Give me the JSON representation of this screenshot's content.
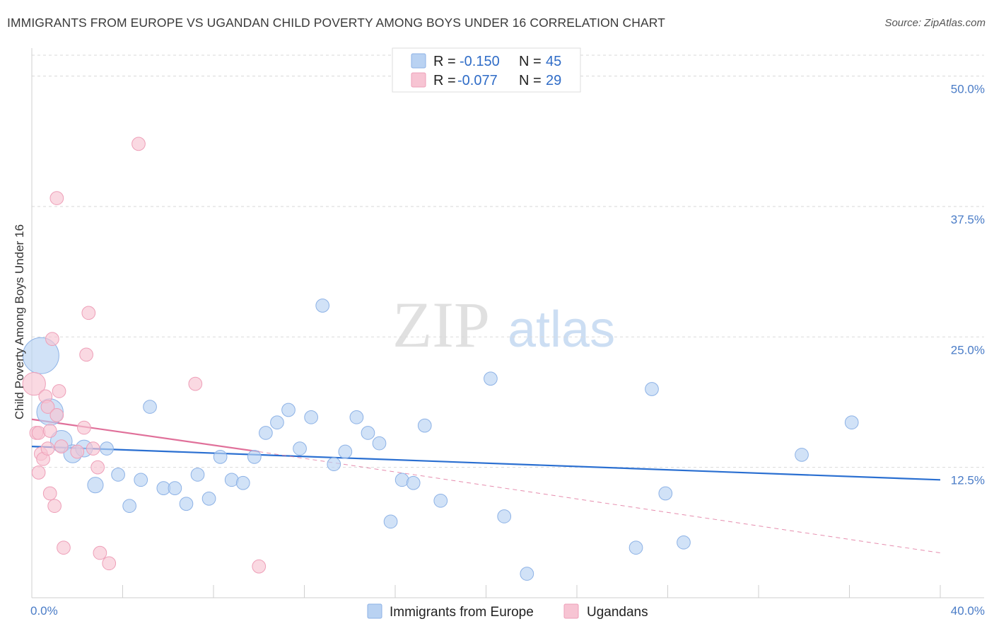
{
  "title": "IMMIGRANTS FROM EUROPE VS UGANDAN CHILD POVERTY AMONG BOYS UNDER 16 CORRELATION CHART",
  "source": "Source: ZipAtlas.com",
  "watermark": {
    "zip": "ZIP",
    "atlas": "atlas"
  },
  "colors": {
    "blue_fill": "#b9d2f2",
    "blue_stroke": "#8db2e6",
    "blue_line": "#2a6fd1",
    "pink_fill": "#f7c4d3",
    "pink_stroke": "#ee9fb8",
    "pink_line": "#e0709a",
    "axis_text": "#4a7cc7",
    "grid": "#d9d9d9"
  },
  "stats_legend": [
    {
      "r_label": "R =",
      "r_value": "-0.150",
      "n_label": "N =",
      "n_value": "45",
      "color": "blue"
    },
    {
      "r_label": "R =",
      "r_value": "-0.077",
      "n_label": "N =",
      "n_value": "29",
      "color": "pink"
    }
  ],
  "chart_data": {
    "type": "scatter",
    "title": "IMMIGRANTS FROM EUROPE VS UGANDAN CHILD POVERTY AMONG BOYS UNDER 16 CORRELATION CHART",
    "xlabel": "",
    "ylabel": "Child Poverty Among Boys Under 16",
    "xlim": [
      0,
      40
    ],
    "ylim": [
      0,
      52
    ],
    "x_tick_labels": [
      {
        "value": 0,
        "label": "0.0%"
      },
      {
        "value": 40,
        "label": "40.0%"
      }
    ],
    "y_ticks": [
      {
        "value": 12.5,
        "label": "12.5%"
      },
      {
        "value": 25.0,
        "label": "25.0%"
      },
      {
        "value": 37.5,
        "label": "37.5%"
      },
      {
        "value": 50.0,
        "label": "50.0%"
      }
    ],
    "series": [
      {
        "name": "Immigrants from Europe",
        "color": "blue",
        "trend": {
          "x0": 0,
          "y0": 14.5,
          "x1": 40,
          "y1": 11.3,
          "dashed_to": null
        },
        "points": [
          {
            "x": 0.4,
            "y": 23.2,
            "s": 3
          },
          {
            "x": 0.8,
            "y": 17.8,
            "s": 2.2
          },
          {
            "x": 1.3,
            "y": 15.0,
            "s": 1.8
          },
          {
            "x": 1.8,
            "y": 13.8,
            "s": 1.5
          },
          {
            "x": 2.3,
            "y": 14.3,
            "s": 1.4
          },
          {
            "x": 2.8,
            "y": 10.8,
            "s": 1.3
          },
          {
            "x": 3.3,
            "y": 14.3,
            "s": 1.1
          },
          {
            "x": 3.8,
            "y": 11.8,
            "s": 1.1
          },
          {
            "x": 4.3,
            "y": 8.8,
            "s": 1.1
          },
          {
            "x": 4.8,
            "y": 11.3,
            "s": 1.1
          },
          {
            "x": 5.2,
            "y": 18.3,
            "s": 1.1
          },
          {
            "x": 5.8,
            "y": 10.5,
            "s": 1.1
          },
          {
            "x": 6.3,
            "y": 10.5,
            "s": 1.1
          },
          {
            "x": 6.8,
            "y": 9.0,
            "s": 1.1
          },
          {
            "x": 7.3,
            "y": 11.8,
            "s": 1.1
          },
          {
            "x": 7.8,
            "y": 9.5,
            "s": 1.1
          },
          {
            "x": 8.3,
            "y": 13.5,
            "s": 1.1
          },
          {
            "x": 8.8,
            "y": 11.3,
            "s": 1.1
          },
          {
            "x": 9.3,
            "y": 11.0,
            "s": 1.1
          },
          {
            "x": 9.8,
            "y": 13.5,
            "s": 1.1
          },
          {
            "x": 10.3,
            "y": 15.8,
            "s": 1.1
          },
          {
            "x": 10.8,
            "y": 16.8,
            "s": 1.1
          },
          {
            "x": 11.3,
            "y": 18.0,
            "s": 1.1
          },
          {
            "x": 11.8,
            "y": 14.3,
            "s": 1.1
          },
          {
            "x": 12.3,
            "y": 17.3,
            "s": 1.1
          },
          {
            "x": 12.8,
            "y": 28.0,
            "s": 1.1
          },
          {
            "x": 13.3,
            "y": 12.8,
            "s": 1.1
          },
          {
            "x": 13.8,
            "y": 14.0,
            "s": 1.1
          },
          {
            "x": 14.3,
            "y": 17.3,
            "s": 1.1
          },
          {
            "x": 14.8,
            "y": 15.8,
            "s": 1.1
          },
          {
            "x": 15.3,
            "y": 14.8,
            "s": 1.1
          },
          {
            "x": 15.8,
            "y": 7.3,
            "s": 1.1
          },
          {
            "x": 16.3,
            "y": 11.3,
            "s": 1.1
          },
          {
            "x": 16.8,
            "y": 11.0,
            "s": 1.1
          },
          {
            "x": 17.3,
            "y": 16.5,
            "s": 1.1
          },
          {
            "x": 18.0,
            "y": 9.3,
            "s": 1.1
          },
          {
            "x": 20.2,
            "y": 21.0,
            "s": 1.1
          },
          {
            "x": 20.8,
            "y": 7.8,
            "s": 1.1
          },
          {
            "x": 21.8,
            "y": 2.3,
            "s": 1.1
          },
          {
            "x": 26.6,
            "y": 4.8,
            "s": 1.1
          },
          {
            "x": 27.3,
            "y": 20.0,
            "s": 1.1
          },
          {
            "x": 27.9,
            "y": 10.0,
            "s": 1.1
          },
          {
            "x": 28.7,
            "y": 5.3,
            "s": 1.1
          },
          {
            "x": 33.9,
            "y": 13.7,
            "s": 1.1
          },
          {
            "x": 36.1,
            "y": 16.8,
            "s": 1.1
          }
        ]
      },
      {
        "name": "Ugandans",
        "color": "pink",
        "trend": {
          "x0": 0,
          "y0": 17.1,
          "x1": 10,
          "y1": 14.0,
          "dashed_to": {
            "x": 40,
            "y": 4.3
          }
        },
        "points": [
          {
            "x": 0.1,
            "y": 20.5,
            "s": 1.9
          },
          {
            "x": 0.2,
            "y": 15.8,
            "s": 1.1
          },
          {
            "x": 0.3,
            "y": 15.8,
            "s": 1.1
          },
          {
            "x": 0.3,
            "y": 12.0,
            "s": 1.1
          },
          {
            "x": 0.4,
            "y": 13.8,
            "s": 1.1
          },
          {
            "x": 0.5,
            "y": 13.3,
            "s": 1.1
          },
          {
            "x": 0.6,
            "y": 19.3,
            "s": 1.1
          },
          {
            "x": 0.7,
            "y": 14.3,
            "s": 1.1
          },
          {
            "x": 0.7,
            "y": 18.3,
            "s": 1.1
          },
          {
            "x": 0.8,
            "y": 16.0,
            "s": 1.1
          },
          {
            "x": 0.8,
            "y": 10.0,
            "s": 1.1
          },
          {
            "x": 0.9,
            "y": 24.8,
            "s": 1.1
          },
          {
            "x": 1.0,
            "y": 8.8,
            "s": 1.1
          },
          {
            "x": 1.1,
            "y": 17.5,
            "s": 1.1
          },
          {
            "x": 1.1,
            "y": 38.3,
            "s": 1.1
          },
          {
            "x": 1.2,
            "y": 19.8,
            "s": 1.1
          },
          {
            "x": 1.3,
            "y": 14.5,
            "s": 1.1
          },
          {
            "x": 1.4,
            "y": 4.8,
            "s": 1.1
          },
          {
            "x": 2.0,
            "y": 14.0,
            "s": 1.1
          },
          {
            "x": 2.3,
            "y": 16.3,
            "s": 1.1
          },
          {
            "x": 2.4,
            "y": 23.3,
            "s": 1.1
          },
          {
            "x": 2.5,
            "y": 27.3,
            "s": 1.1
          },
          {
            "x": 2.7,
            "y": 14.3,
            "s": 1.1
          },
          {
            "x": 2.9,
            "y": 12.5,
            "s": 1.1
          },
          {
            "x": 3.0,
            "y": 4.3,
            "s": 1.1
          },
          {
            "x": 3.4,
            "y": 3.3,
            "s": 1.1
          },
          {
            "x": 4.7,
            "y": 43.5,
            "s": 1.1
          },
          {
            "x": 7.2,
            "y": 20.5,
            "s": 1.1
          },
          {
            "x": 10.0,
            "y": 3.0,
            "s": 1.1
          }
        ]
      }
    ]
  },
  "bottom_legend": [
    {
      "label": "Immigrants from Europe",
      "color": "blue"
    },
    {
      "label": "Ugandans",
      "color": "pink"
    }
  ]
}
